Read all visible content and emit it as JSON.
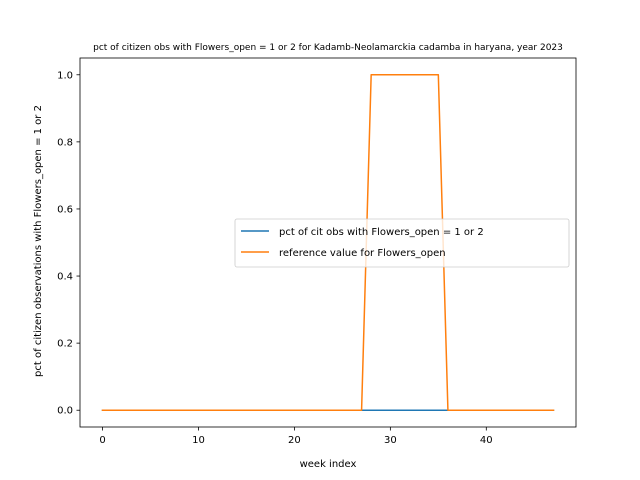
{
  "chart_data": {
    "type": "line",
    "title": "pct of citizen obs with Flowers_open = 1 or 2 for Kadamb-Neolamarckia cadamba in haryana, year 2023",
    "xlabel": "week index",
    "ylabel": "pct of citizen observations with Flowers_open = 1 or 2",
    "xlim": [
      -2.35,
      49.35
    ],
    "ylim": [
      -0.05,
      1.05
    ],
    "xticks": [
      0,
      10,
      20,
      30,
      40
    ],
    "yticks": [
      0.0,
      0.2,
      0.4,
      0.6,
      0.8,
      1.0
    ],
    "xtick_labels": [
      "0",
      "10",
      "20",
      "30",
      "40"
    ],
    "ytick_labels": [
      "0.0",
      "0.2",
      "0.4",
      "0.6",
      "0.8",
      "1.0"
    ],
    "grid": false,
    "legend_position": "center-right",
    "series": [
      {
        "name": "pct of cit obs with Flowers_open = 1 or 2",
        "color": "#1f77b4",
        "x": [
          0,
          1,
          2,
          3,
          4,
          5,
          6,
          7,
          8,
          9,
          10,
          11,
          12,
          13,
          14,
          15,
          16,
          17,
          18,
          19,
          20,
          21,
          22,
          23,
          24,
          25,
          26,
          27,
          28,
          29,
          30,
          31,
          32,
          33,
          34,
          35,
          36,
          37,
          38,
          39,
          40,
          41,
          42,
          43,
          44,
          45,
          46,
          47
        ],
        "y": [
          0,
          0,
          0,
          0,
          0,
          0,
          0,
          0,
          0,
          0,
          0,
          0,
          0,
          0,
          0,
          0,
          0,
          0,
          0,
          0,
          0,
          0,
          0,
          0,
          0,
          0,
          0,
          0,
          0,
          0,
          0,
          0,
          0,
          0,
          0,
          0,
          0,
          0,
          0,
          0,
          0,
          0,
          0,
          0,
          0,
          0,
          0,
          0
        ]
      },
      {
        "name": "reference value for Flowers_open",
        "color": "#ff7f0e",
        "x": [
          0,
          1,
          2,
          3,
          4,
          5,
          6,
          7,
          8,
          9,
          10,
          11,
          12,
          13,
          14,
          15,
          16,
          17,
          18,
          19,
          20,
          21,
          22,
          23,
          24,
          25,
          26,
          27,
          28,
          29,
          30,
          31,
          32,
          33,
          34,
          35,
          36,
          37,
          38,
          39,
          40,
          41,
          42,
          43,
          44,
          45,
          46,
          47
        ],
        "y": [
          0,
          0,
          0,
          0,
          0,
          0,
          0,
          0,
          0,
          0,
          0,
          0,
          0,
          0,
          0,
          0,
          0,
          0,
          0,
          0,
          0,
          0,
          0,
          0,
          0,
          0,
          0,
          0,
          1,
          1,
          1,
          1,
          1,
          1,
          1,
          1,
          0,
          0,
          0,
          0,
          0,
          0,
          0,
          0,
          0,
          0,
          0,
          0
        ]
      }
    ]
  }
}
